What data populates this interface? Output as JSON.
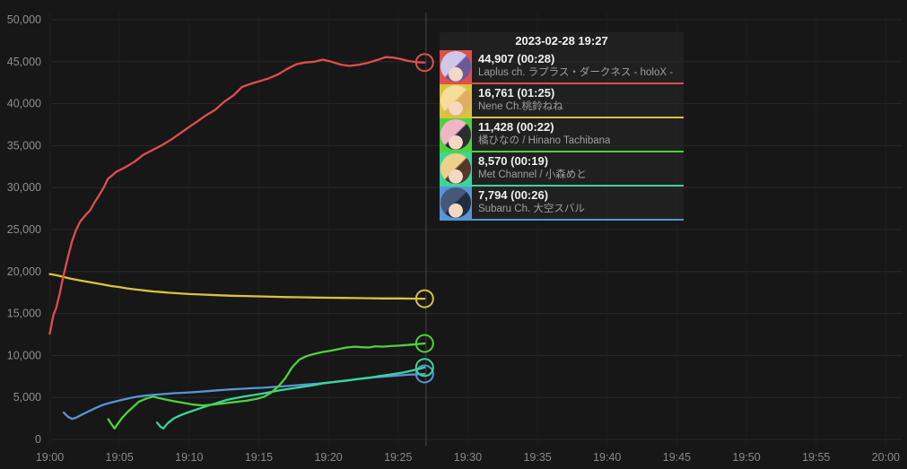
{
  "tooltip": {
    "timestamp": "2023-02-28 19:27",
    "entries": [
      {
        "id": "laplus",
        "value_label": "44,907 (00:28)",
        "channel": "Laplus ch. ラプラス・ダークネス - holoX -",
        "color": "#e14e4e",
        "avatar": {
          "hair1": "#cfc6e8",
          "hair2": "#6b5a99",
          "skin": "#f3d8c4"
        }
      },
      {
        "id": "nene",
        "value_label": "16,761 (01:25)",
        "channel": "Nene Ch.桃鈴ねね",
        "color": "#d9c33f",
        "avatar": {
          "hair1": "#f5dd9a",
          "hair2": "#e0ae5c",
          "skin": "#f3d8c4"
        }
      },
      {
        "id": "hinano",
        "value_label": "11,428 (00:22)",
        "channel": "橘ひなの / Hinano Tachibana",
        "color": "#4fd13c",
        "avatar": {
          "hair1": "#f0b5c9",
          "hair2": "#2c2c33",
          "skin": "#f3d8c4"
        }
      },
      {
        "id": "met",
        "value_label": "8,570 (00:19)",
        "channel": "Met Channel / 小森めと",
        "color": "#3bd69b",
        "avatar": {
          "hair1": "#edd08a",
          "hair2": "#53382a",
          "skin": "#f3d8c4"
        }
      },
      {
        "id": "subaru",
        "value_label": "7,794 (00:26)",
        "channel": "Subaru Ch. 大空スバル",
        "color": "#5596d8",
        "avatar": {
          "hair1": "#46587a",
          "hair2": "#222c40",
          "skin": "#f3d8c4"
        }
      }
    ]
  },
  "chart_data": {
    "type": "line",
    "title": "",
    "xlabel": "",
    "ylabel": "",
    "x_axis": {
      "labels": [
        "19:00",
        "19:05",
        "19:10",
        "19:15",
        "19:20",
        "19:25",
        "19:30",
        "19:35",
        "19:40",
        "19:45",
        "19:50",
        "19:55",
        "20:00"
      ],
      "tick_interval_min": 5
    },
    "y_axis": {
      "min": 0,
      "max": 50000,
      "step": 5000,
      "labels": [
        "0",
        "5,000",
        "10,000",
        "15,000",
        "20,000",
        "25,000",
        "30,000",
        "35,000",
        "40,000",
        "45,000",
        "50,000"
      ]
    },
    "now_min": 27,
    "grid": true,
    "colors": {
      "grid_h": "#2a2a2a",
      "grid_v": "#1e1e1e",
      "now_line": "#454545",
      "background": "#171717"
    },
    "series": [
      {
        "id": "subaru",
        "name": "Subaru Ch. 大空スバル",
        "color": "#5596d8",
        "end_value": 7794,
        "points": [
          [
            1.0,
            3200
          ],
          [
            1.3,
            2700
          ],
          [
            1.6,
            2450
          ],
          [
            1.9,
            2600
          ],
          [
            2.3,
            2950
          ],
          [
            2.8,
            3350
          ],
          [
            3.3,
            3750
          ],
          [
            3.8,
            4100
          ],
          [
            4.3,
            4350
          ],
          [
            4.8,
            4550
          ],
          [
            5.3,
            4750
          ],
          [
            5.8,
            4950
          ],
          [
            6.3,
            5100
          ],
          [
            6.8,
            5200
          ],
          [
            7.4,
            5300
          ],
          [
            8.1,
            5400
          ],
          [
            8.9,
            5500
          ],
          [
            9.7,
            5570
          ],
          [
            10.5,
            5650
          ],
          [
            11.3,
            5750
          ],
          [
            12.1,
            5850
          ],
          [
            12.9,
            5950
          ],
          [
            13.7,
            6030
          ],
          [
            14.5,
            6100
          ],
          [
            15.3,
            6150
          ],
          [
            16.1,
            6250
          ],
          [
            16.9,
            6350
          ],
          [
            17.7,
            6450
          ],
          [
            18.5,
            6550
          ],
          [
            19.3,
            6650
          ],
          [
            20.1,
            6800
          ],
          [
            20.9,
            6950
          ],
          [
            21.7,
            7100
          ],
          [
            22.5,
            7250
          ],
          [
            23.3,
            7400
          ],
          [
            24.1,
            7500
          ],
          [
            24.9,
            7600
          ],
          [
            25.7,
            7700
          ],
          [
            26.9,
            7794
          ]
        ]
      },
      {
        "id": "met",
        "name": "Met Channel / 小森めと",
        "color": "#3bd69b",
        "end_value": 8570,
        "points": [
          [
            7.7,
            2000
          ],
          [
            7.95,
            1500
          ],
          [
            8.15,
            1300
          ],
          [
            8.45,
            1900
          ],
          [
            8.9,
            2500
          ],
          [
            9.4,
            2900
          ],
          [
            9.9,
            3200
          ],
          [
            10.6,
            3600
          ],
          [
            11.3,
            4000
          ],
          [
            12.0,
            4350
          ],
          [
            12.7,
            4700
          ],
          [
            13.4,
            4950
          ],
          [
            14.1,
            5150
          ],
          [
            14.9,
            5350
          ],
          [
            15.7,
            5600
          ],
          [
            16.5,
            5850
          ],
          [
            17.3,
            6050
          ],
          [
            18.1,
            6250
          ],
          [
            18.9,
            6450
          ],
          [
            19.7,
            6700
          ],
          [
            20.5,
            6850
          ],
          [
            21.3,
            7000
          ],
          [
            22.1,
            7200
          ],
          [
            22.9,
            7350
          ],
          [
            23.7,
            7550
          ],
          [
            24.5,
            7750
          ],
          [
            25.3,
            7950
          ],
          [
            26.0,
            8200
          ],
          [
            26.5,
            8400
          ],
          [
            26.9,
            8570
          ]
        ]
      },
      {
        "id": "hinano",
        "name": "橘ひなの / Hinano Tachibana",
        "color": "#4fd13c",
        "end_value": 11428,
        "points": [
          [
            4.2,
            2400
          ],
          [
            4.45,
            1750
          ],
          [
            4.65,
            1300
          ],
          [
            4.9,
            1900
          ],
          [
            5.2,
            2600
          ],
          [
            5.6,
            3300
          ],
          [
            6.0,
            3900
          ],
          [
            6.4,
            4500
          ],
          [
            6.9,
            4850
          ],
          [
            7.4,
            5100
          ],
          [
            7.8,
            4950
          ],
          [
            8.3,
            4750
          ],
          [
            8.9,
            4550
          ],
          [
            9.6,
            4350
          ],
          [
            10.3,
            4150
          ],
          [
            11.0,
            4050
          ],
          [
            11.7,
            4150
          ],
          [
            12.5,
            4300
          ],
          [
            13.3,
            4450
          ],
          [
            14.1,
            4600
          ],
          [
            14.9,
            4850
          ],
          [
            15.4,
            5100
          ],
          [
            15.9,
            5600
          ],
          [
            16.4,
            6300
          ],
          [
            16.9,
            7300
          ],
          [
            17.4,
            8600
          ],
          [
            17.9,
            9500
          ],
          [
            18.4,
            9900
          ],
          [
            18.9,
            10150
          ],
          [
            19.5,
            10400
          ],
          [
            20.1,
            10550
          ],
          [
            20.7,
            10750
          ],
          [
            21.3,
            10950
          ],
          [
            21.9,
            11050
          ],
          [
            22.4,
            10980
          ],
          [
            22.9,
            10950
          ],
          [
            23.4,
            11100
          ],
          [
            23.9,
            11050
          ],
          [
            24.5,
            11120
          ],
          [
            25.1,
            11180
          ],
          [
            25.7,
            11250
          ],
          [
            26.3,
            11350
          ],
          [
            26.9,
            11428
          ]
        ]
      },
      {
        "id": "nene",
        "name": "Nene Ch.桃鈴ねね",
        "color": "#d9c33f",
        "end_value": 16761,
        "points": [
          [
            0,
            19700
          ],
          [
            0.5,
            19550
          ],
          [
            1,
            19350
          ],
          [
            1.5,
            19150
          ],
          [
            2,
            19000
          ],
          [
            2.5,
            18850
          ],
          [
            3,
            18700
          ],
          [
            3.5,
            18550
          ],
          [
            4,
            18400
          ],
          [
            4.5,
            18250
          ],
          [
            5,
            18150
          ],
          [
            5.5,
            18000
          ],
          [
            6,
            17900
          ],
          [
            6.5,
            17800
          ],
          [
            7,
            17700
          ],
          [
            7.5,
            17620
          ],
          [
            8,
            17550
          ],
          [
            8.5,
            17480
          ],
          [
            9,
            17420
          ],
          [
            9.5,
            17370
          ],
          [
            10,
            17320
          ],
          [
            11,
            17250
          ],
          [
            12,
            17180
          ],
          [
            13,
            17120
          ],
          [
            14,
            17080
          ],
          [
            15,
            17040
          ],
          [
            16,
            17000
          ],
          [
            17,
            16960
          ],
          [
            18,
            16930
          ],
          [
            19,
            16900
          ],
          [
            20,
            16880
          ],
          [
            21,
            16860
          ],
          [
            22,
            16840
          ],
          [
            23,
            16820
          ],
          [
            24,
            16800
          ],
          [
            25,
            16790
          ],
          [
            26,
            16775
          ],
          [
            26.9,
            16761
          ]
        ]
      },
      {
        "id": "laplus",
        "name": "Laplus ch. ラプラス・ダークネス - holoX -",
        "color": "#e14e4e",
        "end_value": 44907,
        "points": [
          [
            0,
            12600
          ],
          [
            0.15,
            13900
          ],
          [
            0.25,
            14700
          ],
          [
            0.3,
            15000
          ],
          [
            0.45,
            15600
          ],
          [
            0.7,
            17300
          ],
          [
            0.95,
            19300
          ],
          [
            1.3,
            21700
          ],
          [
            1.6,
            23600
          ],
          [
            1.9,
            25000
          ],
          [
            2.2,
            26000
          ],
          [
            2.6,
            26800
          ],
          [
            2.9,
            27300
          ],
          [
            3.2,
            28200
          ],
          [
            3.55,
            29100
          ],
          [
            3.9,
            30100
          ],
          [
            4.15,
            31000
          ],
          [
            4.5,
            31500
          ],
          [
            4.8,
            31900
          ],
          [
            5.4,
            32400
          ],
          [
            6.1,
            33100
          ],
          [
            6.7,
            33900
          ],
          [
            7.4,
            34500
          ],
          [
            8.0,
            35000
          ],
          [
            8.7,
            35700
          ],
          [
            9.3,
            36400
          ],
          [
            9.9,
            37100
          ],
          [
            10.6,
            37900
          ],
          [
            11.2,
            38600
          ],
          [
            11.9,
            39300
          ],
          [
            12.5,
            40200
          ],
          [
            13.2,
            41000
          ],
          [
            13.8,
            42000
          ],
          [
            14.5,
            42400
          ],
          [
            15.1,
            42700
          ],
          [
            15.7,
            43000
          ],
          [
            16.4,
            43500
          ],
          [
            17.0,
            44100
          ],
          [
            17.7,
            44700
          ],
          [
            18.3,
            44900
          ],
          [
            19.0,
            45000
          ],
          [
            19.6,
            45250
          ],
          [
            20.2,
            45000
          ],
          [
            20.9,
            44650
          ],
          [
            21.5,
            44500
          ],
          [
            22.2,
            44650
          ],
          [
            22.8,
            44850
          ],
          [
            23.5,
            45200
          ],
          [
            24.1,
            45550
          ],
          [
            24.6,
            45500
          ],
          [
            25.1,
            45350
          ],
          [
            25.7,
            45100
          ],
          [
            26.3,
            44950
          ],
          [
            26.9,
            44907
          ]
        ]
      }
    ]
  }
}
